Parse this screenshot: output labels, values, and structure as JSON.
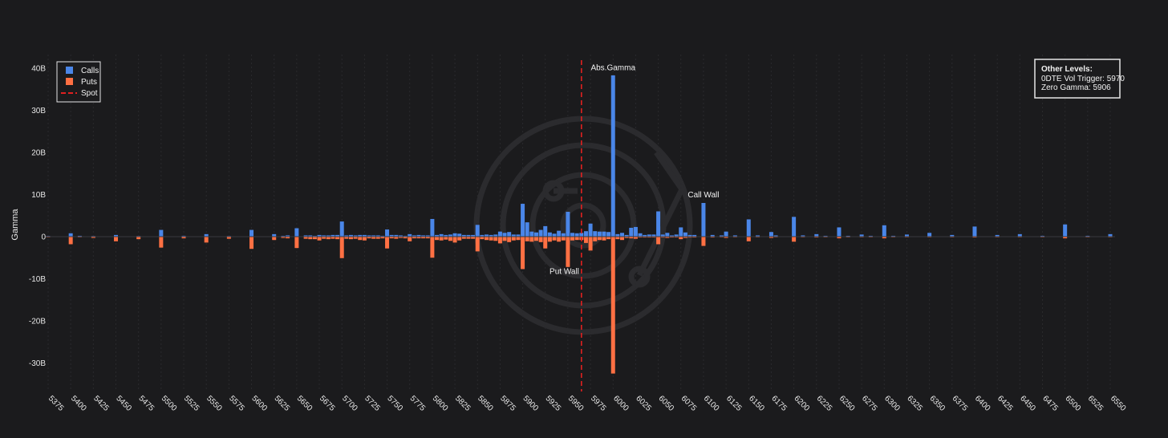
{
  "chart_data": {
    "type": "bar",
    "ylabel": "Gamma",
    "ylim": [
      -37,
      41
    ],
    "yticks": [
      {
        "value": 40,
        "label": "40B"
      },
      {
        "value": 30,
        "label": "30B"
      },
      {
        "value": 20,
        "label": "20B"
      },
      {
        "value": 10,
        "label": "10B"
      },
      {
        "value": 0,
        "label": "0"
      },
      {
        "value": -10,
        "label": "-10B"
      },
      {
        "value": -20,
        "label": "-20B"
      },
      {
        "value": -30,
        "label": "-30B"
      }
    ],
    "xlim": [
      5372,
      6555
    ],
    "xticks": [
      5375,
      5400,
      5425,
      5450,
      5475,
      5500,
      5525,
      5550,
      5575,
      5600,
      5625,
      5650,
      5675,
      5700,
      5725,
      5750,
      5775,
      5800,
      5825,
      5850,
      5875,
      5900,
      5925,
      5950,
      5975,
      6000,
      6025,
      6050,
      6075,
      6100,
      6125,
      6150,
      6175,
      6200,
      6225,
      6250,
      6275,
      6300,
      6325,
      6350,
      6375,
      6400,
      6425,
      6450,
      6475,
      6500,
      6525,
      6550
    ],
    "legend": {
      "position": "top-left",
      "items": [
        {
          "name": "Calls",
          "kind": "square",
          "color": "#4a86e8"
        },
        {
          "name": "Puts",
          "kind": "square",
          "color": "#ff7043"
        },
        {
          "name": "Spot",
          "kind": "dash",
          "color": "#e02020"
        }
      ]
    },
    "colors": {
      "calls": "#4a86e8",
      "puts": "#ff7043",
      "spot": "#e02020"
    },
    "spot": 5965,
    "x": [
      5375,
      5400,
      5410,
      5425,
      5450,
      5475,
      5500,
      5525,
      5550,
      5575,
      5600,
      5625,
      5635,
      5640,
      5650,
      5660,
      5665,
      5670,
      5675,
      5680,
      5685,
      5690,
      5695,
      5700,
      5705,
      5710,
      5715,
      5720,
      5725,
      5730,
      5735,
      5740,
      5745,
      5750,
      5755,
      5760,
      5765,
      5770,
      5775,
      5780,
      5785,
      5790,
      5795,
      5800,
      5805,
      5810,
      5815,
      5820,
      5825,
      5830,
      5835,
      5840,
      5845,
      5850,
      5855,
      5860,
      5865,
      5870,
      5875,
      5880,
      5885,
      5890,
      5895,
      5900,
      5905,
      5910,
      5915,
      5920,
      5925,
      5930,
      5935,
      5940,
      5945,
      5950,
      5955,
      5960,
      5965,
      5970,
      5975,
      5980,
      5985,
      5990,
      5995,
      6000,
      6005,
      6010,
      6015,
      6020,
      6025,
      6030,
      6035,
      6040,
      6045,
      6050,
      6055,
      6060,
      6065,
      6070,
      6075,
      6080,
      6085,
      6090,
      6100,
      6110,
      6120,
      6125,
      6135,
      6150,
      6160,
      6175,
      6180,
      6200,
      6210,
      6225,
      6235,
      6250,
      6260,
      6275,
      6285,
      6300,
      6310,
      6325,
      6350,
      6375,
      6400,
      6425,
      6450,
      6475,
      6500,
      6525,
      6550
    ],
    "series": [
      {
        "name": "Calls",
        "values": [
          0.1,
          0.8,
          0.2,
          0.1,
          0.4,
          0.1,
          1.6,
          0.2,
          0.6,
          0.1,
          1.6,
          0.6,
          0.2,
          0.3,
          2.0,
          0.3,
          0.3,
          0.2,
          0.4,
          0.3,
          0.3,
          0.4,
          0.4,
          3.6,
          0.3,
          0.4,
          0.3,
          0.4,
          0.4,
          0.3,
          0.3,
          0.3,
          0.2,
          1.7,
          0.4,
          0.4,
          0.3,
          0.2,
          0.6,
          0.3,
          0.4,
          0.3,
          0.3,
          4.2,
          0.4,
          0.6,
          0.4,
          0.5,
          0.8,
          0.7,
          0.4,
          0.4,
          0.4,
          2.8,
          0.4,
          0.5,
          0.4,
          0.5,
          1.2,
          0.9,
          1.1,
          0.5,
          0.5,
          7.8,
          3.4,
          1.2,
          1.0,
          1.6,
          2.5,
          1.0,
          0.7,
          1.4,
          0.8,
          5.9,
          0.9,
          0.8,
          0.9,
          1.3,
          3.1,
          1.3,
          1.2,
          1.2,
          1.1,
          38.3,
          0.6,
          0.9,
          0.4,
          2.1,
          2.3,
          0.8,
          0.4,
          0.5,
          0.5,
          6.0,
          0.5,
          0.9,
          0.3,
          0.5,
          2.2,
          1.0,
          0.4,
          0.4,
          8.0,
          0.4,
          0.3,
          1.2,
          0.3,
          4.1,
          0.3,
          1.1,
          0.3,
          4.7,
          0.3,
          0.6,
          0.2,
          2.2,
          0.2,
          0.5,
          0.2,
          2.7,
          0.2,
          0.5,
          0.9,
          0.4,
          2.4,
          0.4,
          0.6,
          0.2,
          2.9,
          0.2,
          0.6
        ]
      },
      {
        "name": "Puts",
        "values": [
          -0.1,
          -1.8,
          -0.1,
          -0.3,
          -1.1,
          -0.6,
          -2.6,
          -0.4,
          -1.4,
          -0.5,
          -2.9,
          -0.8,
          -0.3,
          -0.4,
          -2.7,
          -0.5,
          -0.6,
          -0.6,
          -0.9,
          -0.5,
          -0.6,
          -0.5,
          -0.6,
          -5.1,
          -0.5,
          -0.6,
          -0.5,
          -0.8,
          -0.9,
          -0.4,
          -0.5,
          -0.5,
          -0.4,
          -2.8,
          -0.4,
          -0.5,
          -0.3,
          -0.4,
          -1.1,
          -0.4,
          -0.4,
          -0.4,
          -0.4,
          -5.0,
          -0.8,
          -0.9,
          -0.7,
          -1.0,
          -1.4,
          -0.9,
          -0.5,
          -0.5,
          -0.5,
          -3.5,
          -0.6,
          -0.8,
          -0.9,
          -1.0,
          -1.6,
          -1.0,
          -1.3,
          -0.9,
          -0.8,
          -7.7,
          -1.1,
          -1.2,
          -1.0,
          -1.3,
          -2.8,
          -1.2,
          -0.9,
          -1.2,
          -0.9,
          -7.2,
          -0.9,
          -0.8,
          -0.8,
          -1.5,
          -3.3,
          -1.1,
          -0.8,
          -0.9,
          -0.6,
          -32.5,
          -0.6,
          -0.8,
          -0.3,
          -0.4,
          -0.5,
          -0.2,
          -0.2,
          -0.2,
          -0.2,
          -1.8,
          -0.2,
          -0.3,
          -0.2,
          -0.2,
          -0.6,
          -0.3,
          -0.2,
          -0.2,
          -2.2,
          -0.2,
          -0.1,
          -0.3,
          -0.1,
          -1.1,
          -0.1,
          -0.3,
          -0.1,
          -1.2,
          -0.1,
          -0.2,
          -0.1,
          -0.4,
          -0.1,
          -0.1,
          -0.1,
          -0.4,
          -0.1,
          -0.1,
          -0.1,
          -0.1,
          -0.2,
          -0.1,
          -0.1,
          -0.1,
          -0.4,
          -0.1,
          -0.1
        ]
      }
    ],
    "annotations": [
      {
        "text": "Abs.Gamma",
        "x": 6000,
        "y": 39.5,
        "anchor": "middle"
      },
      {
        "text": "Call Wall",
        "x": 6100,
        "y": 9.3,
        "anchor": "middle"
      },
      {
        "text": "Put Wall",
        "x": 5950,
        "y": -8.9,
        "anchor": "end"
      }
    ],
    "other_levels": {
      "title": "Other Levels:",
      "lines": [
        "0DTE Vol Trigger: 5970",
        "Zero Gamma: 5906"
      ]
    }
  }
}
